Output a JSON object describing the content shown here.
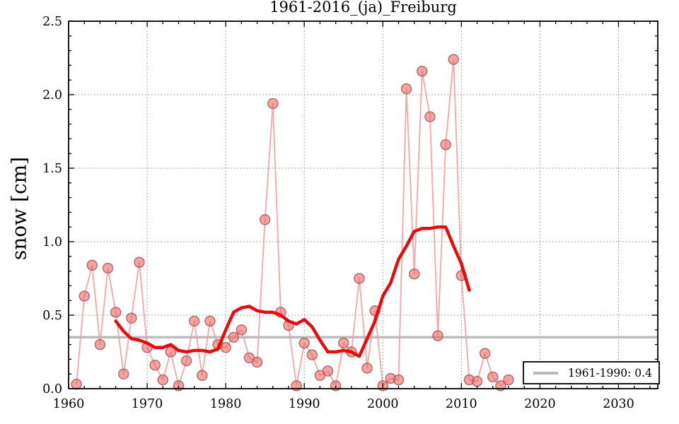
{
  "chart_data": {
    "type": "line",
    "title": "1961-2016_(ja)_Freiburg",
    "xlabel": "",
    "ylabel": "snow [cm]",
    "xlim": [
      1960,
      2035
    ],
    "ylim": [
      0.0,
      2.5
    ],
    "xticks": [
      1960,
      1970,
      1980,
      1990,
      2000,
      2010,
      2020,
      2030
    ],
    "yticks": [
      0.0,
      0.5,
      1.0,
      1.5,
      2.0,
      2.5
    ],
    "x_minor_step": 2,
    "y_minor_step": 0.1,
    "grid": {
      "visible": true,
      "style": "dotted",
      "color": "#8a8a8a"
    },
    "legend": {
      "position": "lower right",
      "entries": [
        {
          "label": "1961-1990: 0.4",
          "color": "#b9b9b9"
        }
      ]
    },
    "series": [
      {
        "name": "annual-snow",
        "type": "line_markers",
        "line_color": "#f49a9a",
        "marker_fill": "#ef6b6b",
        "marker_edge": "#a65c5c",
        "x": [
          1961,
          1962,
          1963,
          1964,
          1965,
          1966,
          1967,
          1968,
          1969,
          1970,
          1971,
          1972,
          1973,
          1974,
          1975,
          1976,
          1977,
          1978,
          1979,
          1980,
          1981,
          1982,
          1983,
          1984,
          1985,
          1986,
          1987,
          1988,
          1989,
          1990,
          1991,
          1992,
          1993,
          1994,
          1995,
          1996,
          1997,
          1998,
          1999,
          2000,
          2001,
          2002,
          2003,
          2004,
          2005,
          2006,
          2007,
          2008,
          2009,
          2010,
          2011,
          2012,
          2013,
          2014,
          2015,
          2016
        ],
        "values": [
          0.03,
          0.63,
          0.84,
          0.3,
          0.82,
          0.52,
          0.1,
          0.48,
          0.86,
          0.28,
          0.16,
          0.06,
          0.25,
          0.02,
          0.19,
          0.46,
          0.09,
          0.46,
          0.3,
          0.28,
          0.35,
          0.4,
          0.21,
          0.18,
          1.15,
          1.94,
          0.52,
          0.43,
          0.02,
          0.31,
          0.23,
          0.09,
          0.12,
          0.02,
          0.31,
          0.25,
          0.75,
          0.14,
          0.53,
          0.02,
          0.07,
          0.06,
          2.04,
          0.78,
          2.16,
          1.85,
          0.36,
          1.66,
          2.24,
          0.77,
          0.06,
          0.05,
          0.24,
          0.08,
          0.02,
          0.06
        ]
      },
      {
        "name": "smoothed-mean",
        "type": "line",
        "line_color": "#e60c0c",
        "x": [
          1966,
          1967,
          1968,
          1969,
          1970,
          1971,
          1972,
          1973,
          1974,
          1975,
          1976,
          1977,
          1978,
          1979,
          1980,
          1981,
          1982,
          1983,
          1984,
          1985,
          1986,
          1987,
          1988,
          1989,
          1990,
          1991,
          1992,
          1993,
          1994,
          1995,
          1996,
          1997,
          1998,
          1999,
          2000,
          2001,
          2002,
          2003,
          2004,
          2005,
          2006,
          2007,
          2008,
          2009,
          2010,
          2011
        ],
        "values": [
          0.46,
          0.39,
          0.34,
          0.33,
          0.31,
          0.28,
          0.28,
          0.3,
          0.26,
          0.25,
          0.26,
          0.26,
          0.25,
          0.27,
          0.4,
          0.52,
          0.55,
          0.56,
          0.53,
          0.52,
          0.52,
          0.5,
          0.46,
          0.44,
          0.47,
          0.42,
          0.33,
          0.25,
          0.25,
          0.26,
          0.25,
          0.22,
          0.34,
          0.46,
          0.63,
          0.72,
          0.88,
          0.97,
          1.07,
          1.09,
          1.09,
          1.1,
          1.1,
          0.97,
          0.85,
          0.67
        ]
      },
      {
        "name": "reference-1961-1990",
        "type": "hline",
        "value": 0.35,
        "line_color": "#b9b9b9",
        "legend_label": "1961-1990: 0.4"
      }
    ]
  }
}
